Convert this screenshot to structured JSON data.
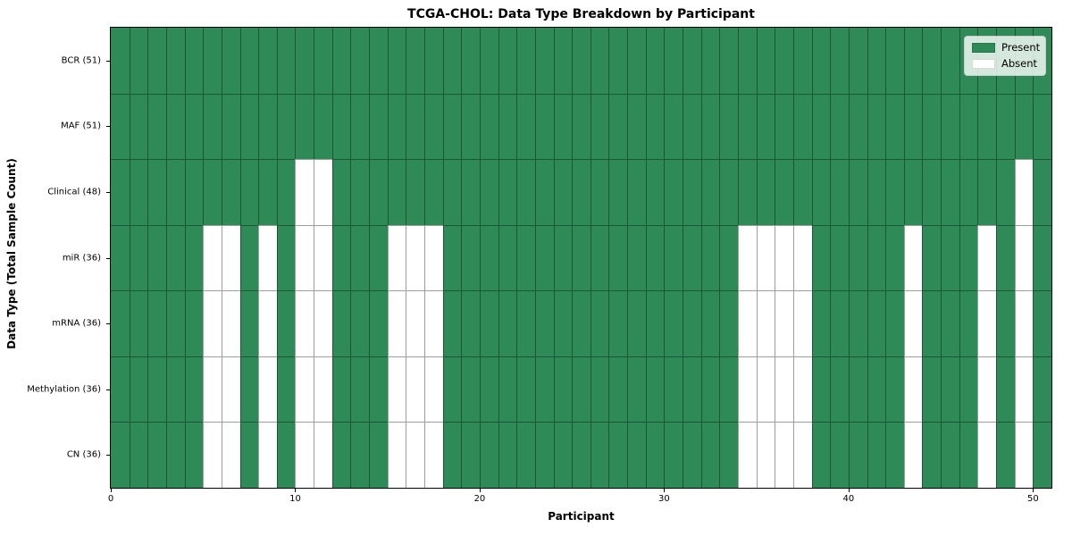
{
  "chart_data": {
    "type": "heatmap",
    "title": "TCGA-CHOL: Data Type Breakdown by Participant",
    "xlabel": "Participant",
    "ylabel": "Data Type (Total Sample Count)",
    "x_ticks": [
      0,
      10,
      20,
      30,
      40,
      50
    ],
    "x_range": [
      0,
      51
    ],
    "n_participants": 51,
    "grid": "cell-edges",
    "legend_position": "upper right",
    "colors": {
      "present": "#2e8b57",
      "absent": "#ffffff",
      "cell_edge": "rgba(0,0,0,0.38)",
      "spine": "#000000",
      "legend_border": "#cccccc"
    },
    "legend_items": [
      {
        "label": "Present",
        "color": "#2e8b57"
      },
      {
        "label": "Absent",
        "color": "#ffffff"
      }
    ],
    "rows": [
      {
        "label": "BCR (51)",
        "data_type": "BCR",
        "present_count": 51,
        "absent_participants": []
      },
      {
        "label": "MAF (51)",
        "data_type": "MAF",
        "present_count": 51,
        "absent_participants": []
      },
      {
        "label": "Clinical (48)",
        "data_type": "Clinical",
        "present_count": 48,
        "absent_participants": [
          10,
          11,
          49
        ]
      },
      {
        "label": "miR (36)",
        "data_type": "miR",
        "present_count": 36,
        "absent_participants": [
          5,
          6,
          8,
          10,
          11,
          15,
          16,
          17,
          34,
          35,
          36,
          37,
          43,
          47,
          49
        ]
      },
      {
        "label": "mRNA (36)",
        "data_type": "mRNA",
        "present_count": 36,
        "absent_participants": [
          5,
          6,
          8,
          10,
          11,
          15,
          16,
          17,
          34,
          35,
          36,
          37,
          43,
          47,
          49
        ]
      },
      {
        "label": "Methylation (36)",
        "data_type": "Methylation",
        "present_count": 36,
        "absent_participants": [
          5,
          6,
          8,
          10,
          11,
          15,
          16,
          17,
          34,
          35,
          36,
          37,
          43,
          47,
          49
        ]
      },
      {
        "label": "CN (36)",
        "data_type": "CN",
        "present_count": 36,
        "absent_participants": [
          5,
          6,
          8,
          10,
          11,
          15,
          16,
          17,
          34,
          35,
          36,
          37,
          43,
          47,
          49
        ]
      }
    ]
  }
}
